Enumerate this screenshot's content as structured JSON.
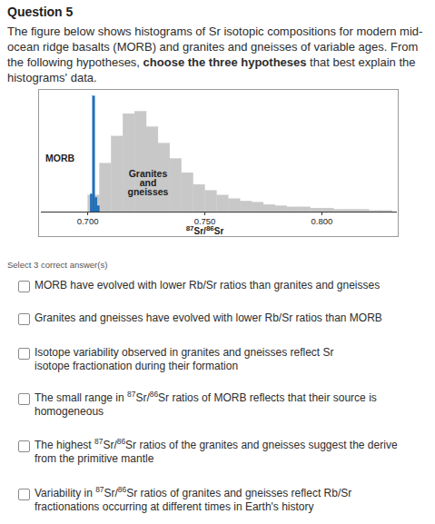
{
  "header": {
    "title": "Question 5"
  },
  "intro": [
    {
      "text": "The figure below shows histograms of Sr isotopic compositions for modern mid-ocean ridge basalts (MORB) and granites and gneisses of variable ages. From the following hypotheses, ",
      "bold": false
    },
    {
      "text": "choose the three hypotheses",
      "bold": true
    },
    {
      "text": " that best explain the histograms' data.",
      "bold": false
    }
  ],
  "chart_data": {
    "type": "histogram",
    "x_label": "87Sr/86Sr",
    "xlim": [
      0.68,
      0.832
    ],
    "xticks": [
      {
        "value": 0.7,
        "label": "0.700"
      },
      {
        "value": 0.75,
        "label": "0.750"
      },
      {
        "value": 0.8,
        "label": "0.800"
      }
    ],
    "ylim": [
      0,
      100
    ],
    "tick_labels": "x",
    "series": [
      {
        "name": "Granites and gneisses",
        "color": "#c8c8c8",
        "bins": [
          0.7,
          0.705,
          0.71,
          0.715,
          0.72,
          0.725,
          0.73,
          0.735,
          0.74,
          0.745,
          0.75,
          0.755,
          0.76,
          0.765,
          0.77,
          0.775,
          0.78,
          0.785,
          0.79,
          0.795,
          0.8,
          0.805,
          0.81,
          0.815,
          0.82,
          0.825,
          0.83
        ],
        "values": [
          14,
          41,
          64,
          83,
          85,
          72,
          58,
          45,
          33,
          23,
          18,
          14,
          11,
          9,
          8,
          6,
          5,
          4,
          4,
          3,
          3,
          2,
          2,
          2,
          1,
          1
        ]
      },
      {
        "name": "MORB",
        "color": "#1f6fb8",
        "bins": [
          0.701,
          0.702,
          0.703,
          0.704,
          0.705
        ],
        "values": [
          15,
          98,
          12,
          5
        ]
      }
    ]
  },
  "instruction": "Select 3 correct answer(s)",
  "options": [
    "MORB have evolved with lower Rb/Sr ratios than granites and gneisses",
    "Granites and gneisses have evolved with lower Rb/Sr ratios than MORB",
    "Isotope variability observed in granites and gneisses reflect Sr isotope fractionation during their formation",
    "The small range in 87Sr/86Sr ratios of MORB reflects that their source is homogeneous",
    "The highest 87Sr/86Sr ratios of the granites and gneisses suggest the derive from the primitive mantle",
    "Variability in 87Sr/86Sr ratios of granites and gneisses reflect Rb/Sr fractionations occurring at different times in Earth's history"
  ]
}
